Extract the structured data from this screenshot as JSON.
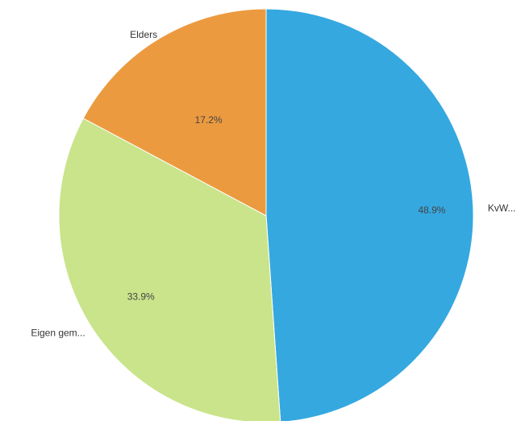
{
  "chart_data": {
    "type": "pie",
    "slices": [
      {
        "label": "KvW...",
        "value": 48.9,
        "value_label": "48.9%",
        "color": "#35a8e0"
      },
      {
        "label": "Eigen gem...",
        "value": 33.9,
        "value_label": "33.9%",
        "color": "#c9e48a"
      },
      {
        "label": "Elders",
        "value": 17.2,
        "value_label": "17.2%",
        "color": "#ec9a3f"
      }
    ],
    "start": "top",
    "direction": "clockwise"
  }
}
